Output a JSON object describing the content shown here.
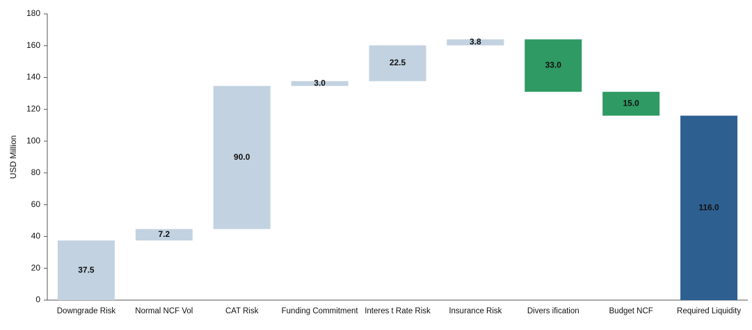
{
  "chart_data": {
    "type": "waterfall",
    "ylabel": "USD Million",
    "categories": [
      "Downgrade Risk",
      "Normal NCF Vol",
      "CAT Risk",
      "Funding Commitment",
      "Interes t Rate Risk",
      "Insurance Risk",
      "Divers ification",
      "Budget NCF",
      "Required Liquidity"
    ],
    "values": [
      37.5,
      7.2,
      90.0,
      3.0,
      22.5,
      3.8,
      33.0,
      15.0,
      116.0
    ],
    "value_labels": [
      "37.5",
      "7.2",
      "90.0",
      "3.0",
      "22.5",
      "3.8",
      "33.0",
      "15.0",
      "116.0"
    ],
    "measures": [
      "increase",
      "increase",
      "increase",
      "increase",
      "increase",
      "increase",
      "decrease",
      "decrease",
      "total"
    ],
    "colors": [
      "#c2d2e0",
      "#c2d2e0",
      "#c2d2e0",
      "#c2d2e0",
      "#c2d2e0",
      "#c2d2e0",
      "#2f9a63",
      "#2f9a63",
      "#2e5f91"
    ],
    "ylim": [
      0,
      180
    ],
    "yticks": [
      0,
      20,
      40,
      60,
      80,
      100,
      120,
      140,
      160,
      180
    ],
    "grid": false
  }
}
